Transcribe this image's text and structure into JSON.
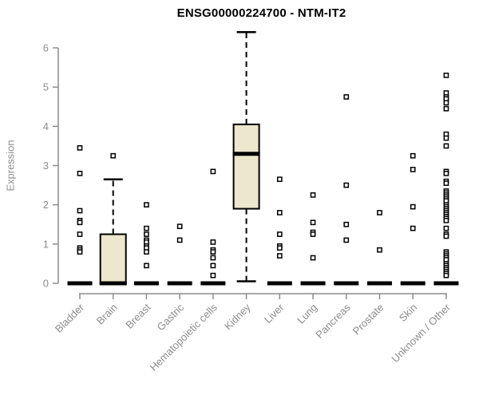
{
  "chart_data": {
    "type": "boxplot",
    "title": "ENSG00000224700 - NTM-IT2",
    "ylabel": "Expression",
    "xlabel": "",
    "ylim": [
      0,
      6.5
    ],
    "yticks": [
      0,
      1,
      2,
      3,
      4,
      5,
      6
    ],
    "grid": false,
    "legend": "none",
    "colors": {
      "box_fill": "#ece7cd",
      "box_stroke": "#000000",
      "axis": "#8c8c8c",
      "title": "#000000",
      "outlier_fill": "#ffffff"
    },
    "categories": [
      "Bladder",
      "Brain",
      "Breast",
      "Gastric",
      "Hematopoietic cells",
      "Kidney",
      "Liver",
      "Lung",
      "Pancreas",
      "Prostate",
      "Skin",
      "Unknown / Other"
    ],
    "series": [
      {
        "category": "Bladder",
        "q1": 0,
        "median": 0,
        "q3": 0,
        "whisker_low": 0,
        "whisker_high": 0,
        "outliers": [
          3.45,
          2.8,
          1.85,
          1.6,
          1.55,
          1.25,
          0.9,
          0.85,
          0.8
        ]
      },
      {
        "category": "Brain",
        "q1": 0,
        "median": 0,
        "q3": 1.25,
        "whisker_low": 0,
        "whisker_high": 2.65,
        "outliers": [
          3.25
        ]
      },
      {
        "category": "Breast",
        "q1": 0,
        "median": 0,
        "q3": 0,
        "whisker_low": 0,
        "whisker_high": 0,
        "outliers": [
          2.0,
          1.4,
          1.25,
          1.1,
          1.05,
          0.95,
          0.9,
          0.8,
          0.45
        ]
      },
      {
        "category": "Gastric",
        "q1": 0,
        "median": 0,
        "q3": 0,
        "whisker_low": 0,
        "whisker_high": 0,
        "outliers": [
          1.45,
          1.1
        ]
      },
      {
        "category": "Hematopoietic cells",
        "q1": 0,
        "median": 0,
        "q3": 0,
        "whisker_low": 0,
        "whisker_high": 0,
        "outliers": [
          2.85,
          1.05,
          0.85,
          0.8,
          0.65,
          0.45,
          0.2
        ]
      },
      {
        "category": "Kidney",
        "q1": 1.9,
        "median": 3.3,
        "q3": 4.05,
        "whisker_low": 0.05,
        "whisker_high": 6.4,
        "outliers": []
      },
      {
        "category": "Liver",
        "q1": 0,
        "median": 0,
        "q3": 0,
        "whisker_low": 0,
        "whisker_high": 0,
        "outliers": [
          2.65,
          1.8,
          1.25,
          0.95,
          0.9,
          0.7
        ]
      },
      {
        "category": "Lung",
        "q1": 0,
        "median": 0,
        "q3": 0,
        "whisker_low": 0,
        "whisker_high": 0,
        "outliers": [
          2.25,
          1.55,
          1.3,
          1.25,
          0.65
        ]
      },
      {
        "category": "Pancreas",
        "q1": 0,
        "median": 0,
        "q3": 0,
        "whisker_low": 0,
        "whisker_high": 0,
        "outliers": [
          4.75,
          2.5,
          1.5,
          1.1
        ]
      },
      {
        "category": "Prostate",
        "q1": 0,
        "median": 0,
        "q3": 0,
        "whisker_low": 0,
        "whisker_high": 0,
        "outliers": [
          1.8,
          0.85
        ]
      },
      {
        "category": "Skin",
        "q1": 0,
        "median": 0,
        "q3": 0,
        "whisker_low": 0,
        "whisker_high": 0,
        "outliers": [
          3.25,
          2.9,
          1.95,
          1.4
        ]
      },
      {
        "category": "Unknown / Other",
        "q1": 0,
        "median": 0,
        "q3": 0,
        "whisker_low": 0,
        "whisker_high": 0,
        "outliers": [
          5.3,
          4.85,
          4.75,
          4.7,
          4.6,
          4.45,
          3.8,
          3.7,
          3.5,
          2.85,
          2.8,
          2.6,
          2.55,
          2.35,
          2.3,
          2.25,
          2.2,
          2.15,
          2.1,
          2.0,
          1.95,
          1.9,
          1.85,
          1.8,
          1.75,
          1.7,
          1.65,
          1.6,
          1.4,
          1.25,
          1.2,
          0.8,
          0.75,
          0.7,
          0.65,
          0.6,
          0.5,
          0.45,
          0.4,
          0.35,
          0.3,
          0.25,
          0.2
        ]
      }
    ]
  }
}
